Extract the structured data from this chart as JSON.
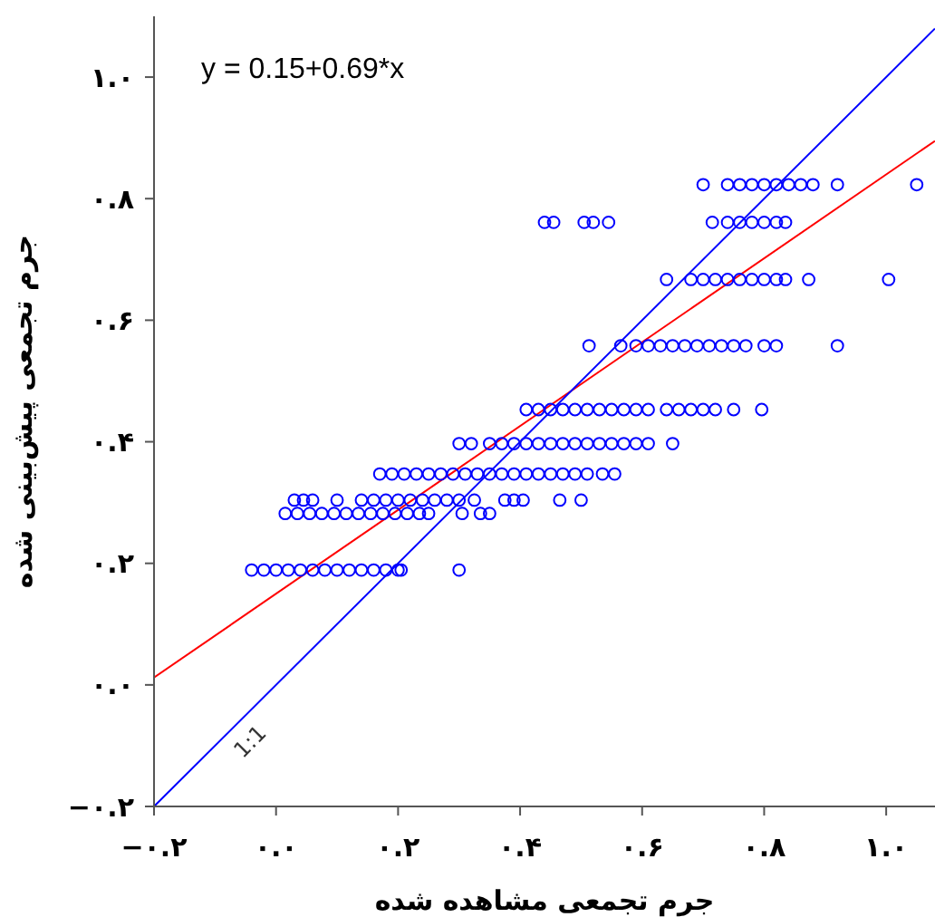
{
  "chart_data": {
    "type": "scatter",
    "xlabel": "جرم تجمعی مشاهده شده",
    "ylabel": "جرم تجمعی پیش‌بینی شده",
    "xlim": [
      -0.2,
      1.08
    ],
    "ylim": [
      -0.2,
      1.1
    ],
    "xticks": [
      {
        "value": -0.2,
        "label": "−۰.۲"
      },
      {
        "value": 0,
        "label": "۰.۰"
      },
      {
        "value": 0.2,
        "label": "۰.۲"
      },
      {
        "value": 0.4,
        "label": "۰.۴"
      },
      {
        "value": 0.6,
        "label": "۰.۶"
      },
      {
        "value": 0.8,
        "label": "۰.۸"
      },
      {
        "value": 1,
        "label": "۱.۰"
      }
    ],
    "yticks": [
      {
        "value": -0.2,
        "label": "−۰.۲"
      },
      {
        "value": 0,
        "label": "۰.۰"
      },
      {
        "value": 0.2,
        "label": "۰.۲"
      },
      {
        "value": 0.4,
        "label": "۰.۴"
      },
      {
        "value": 0.6,
        "label": "۰.۶"
      },
      {
        "value": 0.8,
        "label": "۰.۸"
      },
      {
        "value": 1,
        "label": "۱.۰"
      }
    ],
    "grid": false,
    "annotations": [
      "y = 0.15+0.69*x",
      {
        "text": "1:1",
        "x": -0.065,
        "y": -0.065
      }
    ],
    "series": [
      {
        "marker": "circle",
        "color": "#0000ff",
        "x": [
          0.7,
          0.74,
          0.76,
          0.78,
          0.8,
          0.82,
          0.84,
          0.86,
          0.88,
          0.92,
          1.05,
          0.44,
          0.455,
          0.505,
          0.52,
          0.545,
          0.715,
          0.74,
          0.76,
          0.78,
          0.8,
          0.82,
          0.835,
          0.64,
          0.68,
          0.7,
          0.72,
          0.74,
          0.76,
          0.78,
          0.8,
          0.82,
          0.835,
          0.873,
          1.004,
          0.513,
          0.565,
          0.59,
          0.61,
          0.63,
          0.65,
          0.67,
          0.69,
          0.71,
          0.73,
          0.75,
          0.77,
          0.8,
          0.82,
          0.92,
          0.41,
          0.43,
          0.45,
          0.47,
          0.49,
          0.51,
          0.53,
          0.55,
          0.57,
          0.59,
          0.61,
          0.64,
          0.66,
          0.68,
          0.7,
          0.72,
          0.75,
          0.796,
          0.3,
          0.32,
          0.35,
          0.37,
          0.39,
          0.41,
          0.43,
          0.45,
          0.47,
          0.49,
          0.51,
          0.53,
          0.55,
          0.57,
          0.59,
          0.61,
          0.65,
          0.17,
          0.19,
          0.21,
          0.23,
          0.25,
          0.27,
          0.29,
          0.31,
          0.33,
          0.35,
          0.37,
          0.39,
          0.41,
          0.43,
          0.45,
          0.47,
          0.49,
          0.51,
          0.535,
          0.555,
          0.03,
          0.045,
          0.06,
          0.1,
          0.14,
          0.16,
          0.18,
          0.2,
          0.22,
          0.24,
          0.26,
          0.28,
          0.3,
          0.325,
          0.375,
          0.39,
          0.405,
          0.465,
          0.5,
          0.015,
          0.035,
          0.055,
          0.075,
          0.095,
          0.115,
          0.135,
          0.155,
          0.175,
          0.195,
          0.215,
          0.235,
          0.25,
          0.305,
          0.335,
          0.35,
          -0.04,
          -0.02,
          0.0,
          0.02,
          0.04,
          0.06,
          0.08,
          0.1,
          0.12,
          0.14,
          0.16,
          0.18,
          0.2,
          0.205,
          0.3
        ],
        "values": [
          0.823,
          0.823,
          0.823,
          0.823,
          0.823,
          0.823,
          0.823,
          0.823,
          0.823,
          0.823,
          0.823,
          0.761,
          0.761,
          0.761,
          0.761,
          0.761,
          0.761,
          0.761,
          0.761,
          0.761,
          0.761,
          0.761,
          0.761,
          0.667,
          0.667,
          0.667,
          0.667,
          0.667,
          0.667,
          0.667,
          0.667,
          0.667,
          0.667,
          0.667,
          0.667,
          0.558,
          0.558,
          0.558,
          0.558,
          0.558,
          0.558,
          0.558,
          0.558,
          0.558,
          0.558,
          0.558,
          0.558,
          0.558,
          0.558,
          0.558,
          0.453,
          0.453,
          0.453,
          0.453,
          0.453,
          0.453,
          0.453,
          0.453,
          0.453,
          0.453,
          0.453,
          0.453,
          0.453,
          0.453,
          0.453,
          0.453,
          0.453,
          0.453,
          0.397,
          0.397,
          0.397,
          0.397,
          0.397,
          0.397,
          0.397,
          0.397,
          0.397,
          0.397,
          0.397,
          0.397,
          0.397,
          0.397,
          0.397,
          0.397,
          0.397,
          0.347,
          0.347,
          0.347,
          0.347,
          0.347,
          0.347,
          0.347,
          0.347,
          0.347,
          0.347,
          0.347,
          0.347,
          0.347,
          0.347,
          0.347,
          0.347,
          0.347,
          0.347,
          0.347,
          0.347,
          0.304,
          0.304,
          0.304,
          0.304,
          0.304,
          0.304,
          0.304,
          0.304,
          0.304,
          0.304,
          0.304,
          0.304,
          0.304,
          0.304,
          0.304,
          0.304,
          0.304,
          0.304,
          0.304,
          0.282,
          0.282,
          0.282,
          0.282,
          0.282,
          0.282,
          0.282,
          0.282,
          0.282,
          0.282,
          0.282,
          0.282,
          0.282,
          0.282,
          0.282,
          0.282,
          0.189,
          0.189,
          0.189,
          0.189,
          0.189,
          0.189,
          0.189,
          0.189,
          0.189,
          0.189,
          0.189,
          0.189,
          0.189,
          0.189,
          0.189
        ]
      },
      {
        "type": "line",
        "color": "#ff0000",
        "x": [
          -0.2,
          1.08
        ],
        "values": [
          0.012,
          0.895
        ]
      },
      {
        "type": "line",
        "color": "#0000ff",
        "x": [
          -0.2,
          1.08
        ],
        "values": [
          -0.2,
          1.08
        ]
      }
    ]
  }
}
